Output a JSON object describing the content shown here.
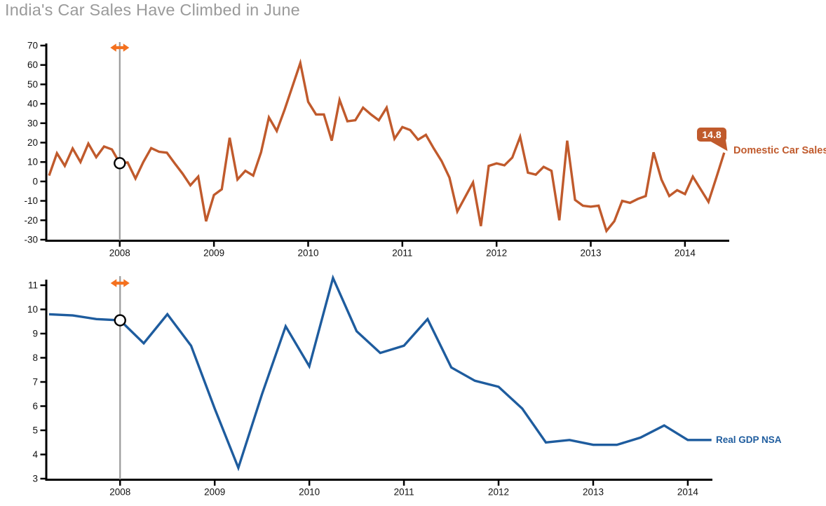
{
  "page": {
    "title": "India's Car Sales Have Climbed in June"
  },
  "colors": {
    "title_text": "#9A9A9A",
    "car_sales_line": "#C05A2C",
    "gdp_line": "#1E5C9E",
    "axis": "#000000",
    "tick_label": "#111111",
    "cursor_line": "#9A9A9A",
    "cursor_arrow": "#F4711F",
    "cursor_marker_fill": "#FFFFFF",
    "cursor_marker_stroke": "#000000",
    "tooltip_bg": "#C05A2C",
    "tooltip_text": "#FFFFFF"
  },
  "tooltip": {
    "value": "14.8"
  },
  "chart_data": [
    {
      "type": "line",
      "name": "car-sales",
      "title": "",
      "xlabel": "",
      "ylabel": "",
      "ylim": [
        -30,
        70
      ],
      "yticks": [
        70,
        60,
        50,
        40,
        30,
        20,
        10,
        0,
        -10,
        -20,
        -30
      ],
      "xticks": [
        2008,
        2009,
        2010,
        2011,
        2012,
        2013,
        2014
      ],
      "xlim": [
        2007.22,
        2014.47
      ],
      "grid": false,
      "legend_position": "line-end-right",
      "end_label": "14.8",
      "cursor": {
        "x": 2008,
        "value": 9.4
      },
      "series": [
        {
          "name": "Domestic Car Sales",
          "color": "#C05A2C",
          "x_start": 2007.25,
          "x_step_months": 1,
          "values": [
            3,
            14.5,
            8,
            17,
            10,
            19.5,
            12.5,
            18,
            16.5,
            9.4,
            9.8,
            1.5,
            10,
            17.2,
            15.3,
            14.8,
            9.3,
            4,
            -2,
            2.5,
            -20.5,
            -7,
            -4,
            22.5,
            1,
            5.5,
            3,
            15,
            33,
            26,
            37,
            49,
            61,
            41,
            34.5,
            34.5,
            21,
            42,
            31,
            31.5,
            38,
            34.5,
            31.5,
            38,
            22,
            28,
            26.5,
            21.5,
            24,
            17,
            10.5,
            2,
            -15.5,
            -8,
            -0.5,
            -23,
            8,
            9.3,
            8.3,
            12.3,
            23,
            4.5,
            3.5,
            7.5,
            5.5,
            -20,
            21,
            -9.5,
            -12.5,
            -13,
            -12.5,
            -25.5,
            -20.5,
            -10,
            -11,
            -9,
            -7.5,
            15,
            1,
            -7.5,
            -4.5,
            -6.5,
            2.5,
            -4,
            -10.5,
            2,
            14.8
          ]
        }
      ]
    },
    {
      "type": "line",
      "name": "gdp",
      "title": "",
      "xlabel": "",
      "ylabel": "",
      "ylim": [
        3,
        11
      ],
      "yticks": [
        11,
        10,
        9,
        8,
        7,
        6,
        5,
        4,
        3
      ],
      "xticks": [
        2008,
        2009,
        2010,
        2011,
        2012,
        2013,
        2014
      ],
      "xlim": [
        2007.22,
        2014.26
      ],
      "grid": false,
      "legend_position": "line-end-right",
      "cursor": {
        "x": 2008,
        "value": 9.55
      },
      "series": [
        {
          "name": "Real GDP NSA",
          "color": "#1E5C9E",
          "x_start": 2007.25,
          "x_step_months": 3,
          "values": [
            9.8,
            9.75,
            9.6,
            9.55,
            8.6,
            9.8,
            8.5,
            5.9,
            3.45,
            6.5,
            9.3,
            7.65,
            11.3,
            9.1,
            8.2,
            8.5,
            9.6,
            7.6,
            7.05,
            6.8,
            5.9,
            4.5,
            4.6,
            4.4,
            4.4,
            4.7,
            5.2,
            4.6,
            4.6
          ]
        }
      ]
    }
  ]
}
